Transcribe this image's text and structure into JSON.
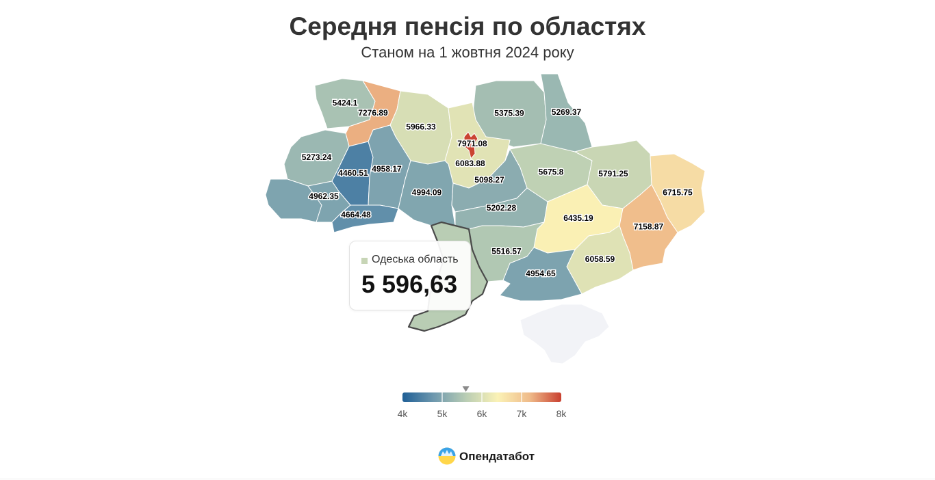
{
  "title": "Середня пенсія по областях",
  "subtitle": "Станом на 1 жовтня 2024 року",
  "color_scale": {
    "min": 4000,
    "max": 8000,
    "stops": [
      "#1f5f96",
      "#6f99ae",
      "#b9cdb4",
      "#fbf2b6",
      "#efbb8a",
      "#c9402f"
    ],
    "ticks": [
      "4k",
      "5k",
      "6k",
      "7k",
      "8k"
    ],
    "tick_values": [
      4000,
      5000,
      6000,
      7000,
      8000
    ],
    "marker_value": 5596.63,
    "no_data_color": "#f2f3f7"
  },
  "regions": [
    {
      "id": "volyn",
      "label": "5424.1",
      "value": 5424.1
    },
    {
      "id": "rivne",
      "label": "7276.89",
      "value": 7276.89
    },
    {
      "id": "zhytomyr",
      "label": "5966.33",
      "value": 5966.33
    },
    {
      "id": "kyiv-oblast",
      "label": "6083.88",
      "value": 6083.88
    },
    {
      "id": "kyiv-city",
      "label": "7971.08",
      "value": 7971.08
    },
    {
      "id": "chernihiv",
      "label": "5375.39",
      "value": 5375.39
    },
    {
      "id": "sumy",
      "label": "5269.37",
      "value": 5269.37
    },
    {
      "id": "lviv",
      "label": "5273.24",
      "value": 5273.24
    },
    {
      "id": "ternopil",
      "label": "4460.51",
      "value": 4460.51
    },
    {
      "id": "khmelnytskyi",
      "label": "4958.17",
      "value": 4958.17
    },
    {
      "id": "ivano-frankivsk",
      "label": "4962.35",
      "value": 4962.35
    },
    {
      "id": "zakarpattia",
      "label": "4962.35",
      "value": 4962.35
    },
    {
      "id": "chernivtsi",
      "label": "4664.48",
      "value": 4664.48
    },
    {
      "id": "vinnytsia",
      "label": "4994.09",
      "value": 4994.09
    },
    {
      "id": "cherkasy",
      "label": "5098.27",
      "value": 5098.27
    },
    {
      "id": "poltava",
      "label": "5675.8",
      "value": 5675.8
    },
    {
      "id": "kharkiv",
      "label": "5791.25",
      "value": 5791.25
    },
    {
      "id": "luhansk",
      "label": "6715.75",
      "value": 6715.75
    },
    {
      "id": "kirovohrad",
      "label": "5202.28",
      "value": 5202.28
    },
    {
      "id": "dnipro",
      "label": "6435.19",
      "value": 6435.19
    },
    {
      "id": "donetsk",
      "label": "7158.87",
      "value": 7158.87
    },
    {
      "id": "odesa",
      "label": "5596.63",
      "value": 5596.63
    },
    {
      "id": "mykolaiv",
      "label": "5516.57",
      "value": 5516.57
    },
    {
      "id": "zaporizhzhia",
      "label": "6058.59",
      "value": 6058.59
    },
    {
      "id": "kherson",
      "label": "4954.65",
      "value": 4954.65
    },
    {
      "id": "crimea",
      "label": "",
      "value": null
    }
  ],
  "tooltip": {
    "region_name": "Одеська область",
    "value": "5 596,63",
    "color": "#c7d5b6"
  },
  "brand": {
    "name": "Опендатабот",
    "logo_icon": "opendatabot-logo-icon"
  }
}
